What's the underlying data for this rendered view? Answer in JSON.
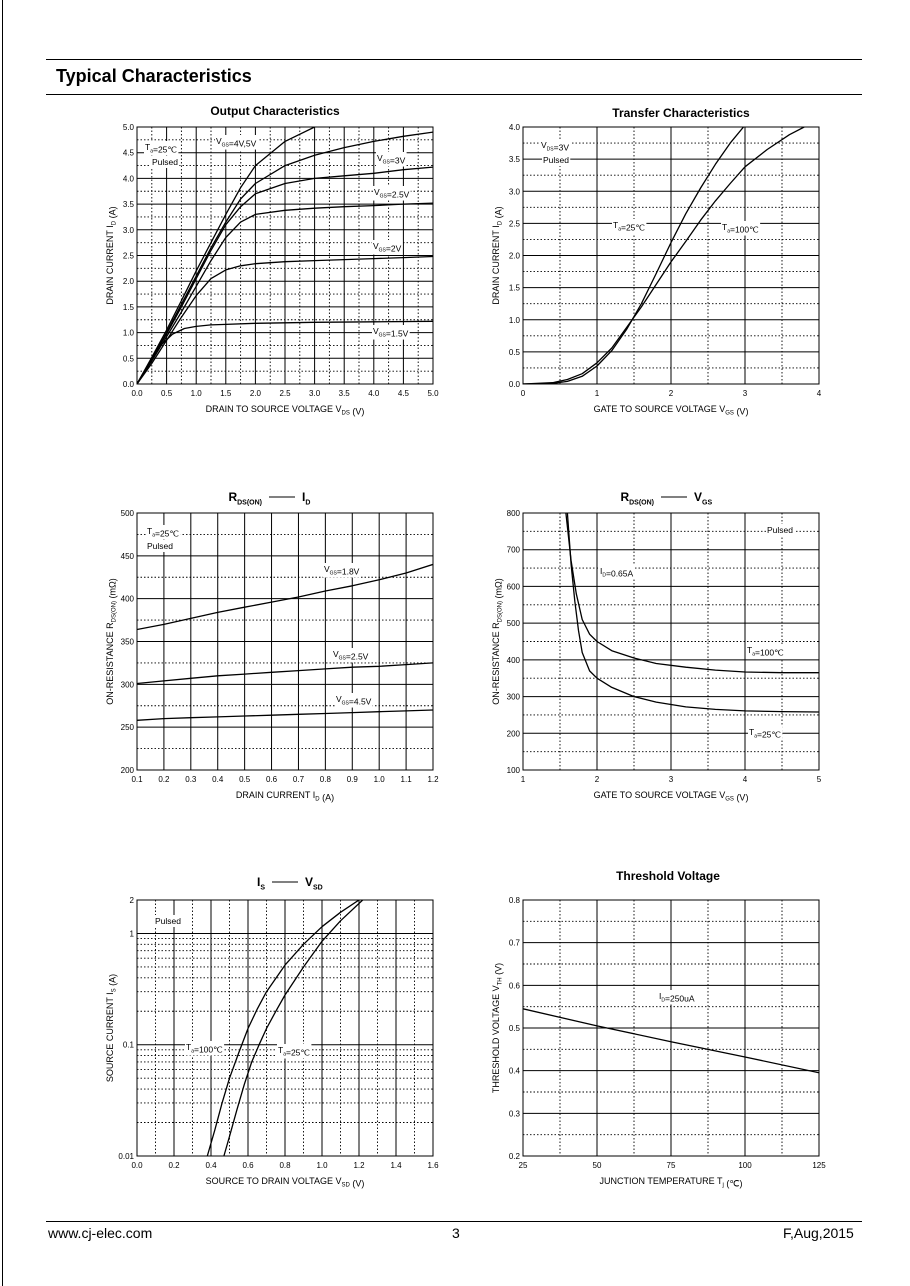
{
  "page": {
    "heading": "Typical Characteristics",
    "footer_left": "www.cj-elec.com",
    "footer_center": "3",
    "footer_right": "F,Aug,2015"
  },
  "chart_data": [
    {
      "type": "line",
      "title": "Output Characteristics",
      "xlabel": "DRAIN TO SOURCE VOLTAGE V_DS (V)",
      "ylabel": "DRAIN CURRENT I_D (A)",
      "xlim": [
        0,
        5
      ],
      "ylim": [
        0,
        5
      ],
      "xticks": [
        "0.0",
        "0.5",
        "1.0",
        "1.5",
        "2.0",
        "2.5",
        "3.0",
        "3.5",
        "4.0",
        "4.5",
        "5.0"
      ],
      "yticks": [
        "0.0",
        "0.5",
        "1.0",
        "1.5",
        "2.0",
        "2.5",
        "3.0",
        "3.5",
        "4.0",
        "4.5",
        "5.0"
      ],
      "annotations": [
        "T_a=25℃",
        "Pulsed"
      ],
      "series": [
        {
          "name": "V_GS=4V,5V",
          "x": [
            0,
            0.25,
            0.5,
            0.75,
            1.0,
            1.25,
            1.5,
            1.75,
            2.0,
            2.5,
            3.0
          ],
          "y": [
            0,
            0.52,
            1.05,
            1.62,
            2.2,
            2.75,
            3.3,
            3.82,
            4.25,
            4.72,
            5.0
          ]
        },
        {
          "name": "V_GS=3V",
          "x": [
            0,
            0.25,
            0.5,
            0.75,
            1.0,
            1.25,
            1.5,
            1.75,
            2.0,
            2.5,
            3.0,
            3.5,
            4.0,
            4.5,
            5.0
          ],
          "y": [
            0,
            0.5,
            1.0,
            1.55,
            2.1,
            2.65,
            3.15,
            3.6,
            3.9,
            4.25,
            4.45,
            4.6,
            4.72,
            4.82,
            4.9
          ]
        },
        {
          "name": "V_GS=2.5V",
          "x": [
            0,
            0.25,
            0.5,
            0.75,
            1.0,
            1.25,
            1.5,
            1.75,
            2.0,
            2.5,
            3.0,
            3.5,
            4.0,
            4.5,
            5.0
          ],
          "y": [
            0,
            0.48,
            0.97,
            1.5,
            2.05,
            2.6,
            3.1,
            3.45,
            3.7,
            3.9,
            4.0,
            4.05,
            4.1,
            4.17,
            4.22
          ]
        },
        {
          "name": "",
          "x": [
            0,
            0.25,
            0.5,
            0.75,
            1.0,
            1.25,
            1.5,
            1.75,
            2.0,
            2.5,
            3.0,
            3.5,
            4.0,
            4.5,
            5.0
          ],
          "y": [
            0,
            0.45,
            0.92,
            1.4,
            1.9,
            2.4,
            2.85,
            3.15,
            3.3,
            3.38,
            3.42,
            3.45,
            3.47,
            3.5,
            3.52
          ]
        },
        {
          "name": "V_GS=2V",
          "x": [
            0,
            0.25,
            0.5,
            0.75,
            1.0,
            1.25,
            1.5,
            1.75,
            2.0,
            2.5,
            3.0,
            3.5,
            4.0,
            4.5,
            5.0
          ],
          "y": [
            0,
            0.4,
            0.85,
            1.3,
            1.72,
            2.05,
            2.22,
            2.3,
            2.34,
            2.38,
            2.4,
            2.42,
            2.44,
            2.46,
            2.48
          ]
        },
        {
          "name": "V_GS=1.5V",
          "x": [
            0,
            0.1,
            0.25,
            0.4,
            0.6,
            0.8,
            1.0,
            1.25,
            1.5,
            2.0,
            2.5,
            3.0,
            4.0,
            5.0
          ],
          "y": [
            0,
            0.2,
            0.5,
            0.75,
            0.97,
            1.08,
            1.12,
            1.15,
            1.16,
            1.18,
            1.19,
            1.2,
            1.21,
            1.22
          ]
        }
      ]
    },
    {
      "type": "line",
      "title": "Transfer Characteristics",
      "xlabel": "GATE TO SOURCE VOLTAGE V_GS (V)",
      "ylabel": "DRAIN CURRENT I_D (A)",
      "xlim": [
        0,
        4
      ],
      "ylim": [
        0,
        4
      ],
      "xticks": [
        "0",
        "1",
        "2",
        "3",
        "4"
      ],
      "yticks": [
        "0.0",
        "0.5",
        "1.0",
        "1.5",
        "2.0",
        "2.5",
        "3.0",
        "3.5",
        "4.0"
      ],
      "annotations": [
        "V_DS=3V",
        "Pulsed"
      ],
      "series": [
        {
          "name": "T_a=25℃",
          "x": [
            0,
            0.4,
            0.6,
            0.8,
            1.0,
            1.2,
            1.4,
            1.6,
            1.8,
            2.0,
            2.2,
            2.4,
            2.6,
            2.8,
            2.98
          ],
          "y": [
            0,
            0.01,
            0.04,
            0.12,
            0.28,
            0.52,
            0.85,
            1.25,
            1.72,
            2.2,
            2.65,
            3.05,
            3.42,
            3.75,
            4.0
          ]
        },
        {
          "name": "T_a=100℃",
          "x": [
            0,
            0.4,
            0.6,
            0.8,
            1.0,
            1.2,
            1.4,
            1.6,
            1.8,
            2.0,
            2.2,
            2.4,
            2.6,
            2.8,
            3.0,
            3.3,
            3.6,
            3.8
          ],
          "y": [
            0,
            0.02,
            0.07,
            0.16,
            0.33,
            0.56,
            0.88,
            1.2,
            1.55,
            1.9,
            2.22,
            2.55,
            2.85,
            3.12,
            3.38,
            3.65,
            3.88,
            4.0
          ]
        }
      ]
    },
    {
      "type": "line",
      "title": "R_DS(ON) — I_D",
      "xlabel": "DRAIN CURRENT I_D (A)",
      "ylabel": "ON-RESISTANCE R_DS(ON) (mΩ)",
      "xlim": [
        0.1,
        1.2
      ],
      "ylim": [
        200,
        500
      ],
      "xticks": [
        "0.1",
        "0.2",
        "0.3",
        "0.4",
        "0.5",
        "0.6",
        "0.7",
        "0.8",
        "0.9",
        "1.0",
        "1.1",
        "1.2"
      ],
      "yticks": [
        "200",
        "250",
        "300",
        "350",
        "400",
        "450",
        "500"
      ],
      "annotations": [
        "T_a=25℃",
        "Pulsed"
      ],
      "series": [
        {
          "name": "V_GS=1.8V",
          "x": [
            0.1,
            0.2,
            0.3,
            0.4,
            0.5,
            0.6,
            0.7,
            0.8,
            0.9,
            1.0,
            1.1,
            1.2
          ],
          "y": [
            364,
            370,
            377,
            384,
            390,
            396,
            402,
            409,
            415,
            422,
            430,
            440
          ]
        },
        {
          "name": "V_GS=2.5V",
          "x": [
            0.1,
            0.2,
            0.3,
            0.4,
            0.5,
            0.6,
            0.7,
            0.8,
            0.9,
            1.0,
            1.1,
            1.2
          ],
          "y": [
            301,
            304,
            307,
            310,
            312,
            314,
            316,
            318,
            320,
            321,
            323,
            325
          ]
        },
        {
          "name": "V_GS=4.5V",
          "x": [
            0.1,
            0.2,
            0.3,
            0.4,
            0.5,
            0.6,
            0.7,
            0.8,
            0.9,
            1.0,
            1.1,
            1.2
          ],
          "y": [
            258,
            260,
            261,
            262,
            263,
            264,
            265,
            266,
            267,
            268,
            269,
            270
          ]
        }
      ]
    },
    {
      "type": "line",
      "title": "R_DS(ON) — V_GS",
      "xlabel": "GATE TO SOURCE VOLTAGE V_GS (V)",
      "ylabel": "ON-RESISTANCE R_DS(ON) (mΩ)",
      "xlim": [
        1,
        5
      ],
      "ylim": [
        100,
        800
      ],
      "xticks": [
        "1",
        "2",
        "3",
        "4",
        "5"
      ],
      "yticks": [
        "100",
        "200",
        "300",
        "400",
        "500",
        "600",
        "700",
        "800"
      ],
      "annotations": [
        "Pulsed",
        "I_D=0.65A"
      ],
      "series": [
        {
          "name": "T_a=100℃",
          "x": [
            1.58,
            1.65,
            1.72,
            1.8,
            1.9,
            2.0,
            2.2,
            2.5,
            2.8,
            3.2,
            3.6,
            4.0,
            4.5,
            5.0
          ],
          "y": [
            800,
            670,
            580,
            510,
            470,
            450,
            425,
            405,
            390,
            380,
            372,
            367,
            365,
            365
          ]
        },
        {
          "name": "T_a=25℃",
          "x": [
            1.6,
            1.65,
            1.7,
            1.75,
            1.8,
            1.9,
            2.0,
            2.2,
            2.5,
            2.8,
            3.2,
            3.6,
            4.0,
            4.5,
            5.0
          ],
          "y": [
            800,
            660,
            560,
            480,
            420,
            370,
            350,
            325,
            300,
            285,
            272,
            265,
            261,
            259,
            258
          ]
        }
      ]
    },
    {
      "type": "line",
      "title": "I_S — V_SD",
      "xlabel": "SOURCE TO DRAIN VOLTAGE V_SD (V)",
      "ylabel": "SOURCE CURRENT I_S (A)",
      "xlim": [
        0,
        1.6
      ],
      "ylim": [
        0.01,
        2
      ],
      "yscale": "log",
      "xticks": [
        "0.0",
        "0.2",
        "0.4",
        "0.6",
        "0.8",
        "1.0",
        "1.2",
        "1.4",
        "1.6"
      ],
      "yticks": [
        "0.01",
        "0.1",
        "1",
        "2"
      ],
      "annotations": [
        "Pulsed"
      ],
      "series": [
        {
          "name": "T_a=100℃",
          "x": [
            0.38,
            0.42,
            0.46,
            0.5,
            0.55,
            0.6,
            0.65,
            0.7,
            0.8,
            0.9,
            1.0,
            1.1,
            1.2
          ],
          "y": [
            0.01,
            0.017,
            0.03,
            0.05,
            0.085,
            0.14,
            0.21,
            0.3,
            0.52,
            0.8,
            1.15,
            1.55,
            2.0
          ]
        },
        {
          "name": "T_a=25℃",
          "x": [
            0.47,
            0.5,
            0.54,
            0.58,
            0.62,
            0.66,
            0.7,
            0.75,
            0.8,
            0.9,
            1.0,
            1.1,
            1.22
          ],
          "y": [
            0.01,
            0.015,
            0.026,
            0.044,
            0.07,
            0.1,
            0.14,
            0.2,
            0.28,
            0.5,
            0.85,
            1.3,
            2.0
          ]
        }
      ]
    },
    {
      "type": "line",
      "title": "Threshold Voltage",
      "xlabel": "JUNCTION TEMPERATURE T_j (℃)",
      "ylabel": "THRESHOLD VOLTAGE V_TH (V)",
      "xlim": [
        25,
        125
      ],
      "ylim": [
        0.2,
        0.8
      ],
      "xticks": [
        "25",
        "50",
        "75",
        "100",
        "125"
      ],
      "yticks": [
        "0.2",
        "0.3",
        "0.4",
        "0.5",
        "0.6",
        "0.7",
        "0.8"
      ],
      "series": [
        {
          "name": "I_D=250uA",
          "x": [
            25,
            50,
            75,
            100,
            125
          ],
          "y": [
            0.545,
            0.505,
            0.468,
            0.432,
            0.395
          ]
        }
      ]
    }
  ]
}
